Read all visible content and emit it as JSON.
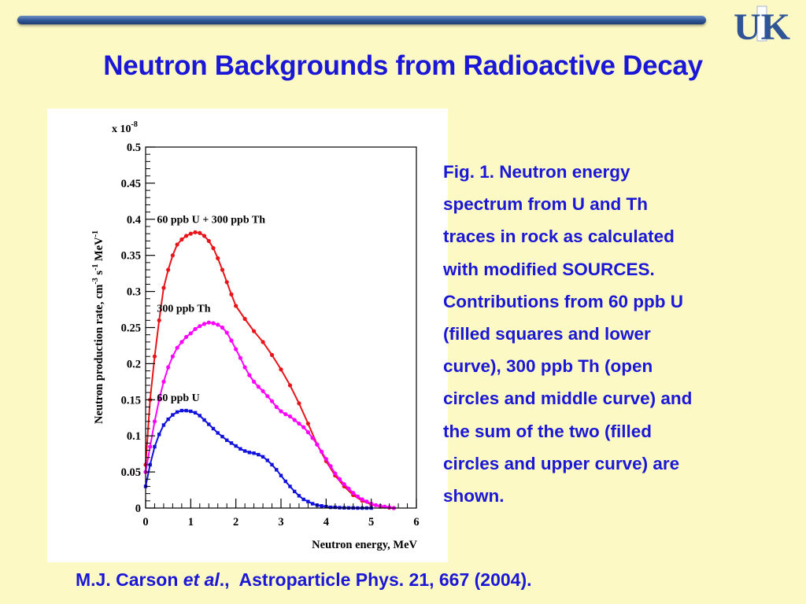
{
  "slide": {
    "title": "Neutron Backgrounds from Radioactive Decay",
    "logo_text": "UK",
    "caption_lines": [
      "Fig. 1. Neutron energy",
      "spectrum from U and Th",
      "traces in rock as calculated",
      "with modified SOURCES.",
      "Contributions from 60 ppb U",
      "(filled squares and lower",
      "curve), 300 ppb Th (open",
      "circles and middle curve) and",
      "the sum of the two (filled",
      "circles and upper curve) are",
      "shown."
    ],
    "citation": {
      "authors": "M.J. Carson ",
      "etal": "et al",
      "after_etal": ".,",
      "journal": "  Astroparticle Phys. 21, 667 (2004)."
    },
    "colors": {
      "title": "#1a17d6",
      "background": "#fdf9c4",
      "bar": "#2f5597",
      "logo": "#2f5597"
    }
  },
  "chart_data": {
    "type": "line",
    "xlabel": "Neutron energy, MeV",
    "ylabel": "Neutron production rate, cm",
    "ylabel_sup1": "-3",
    "ylabel_mid": " s",
    "ylabel_sup2": "-1",
    "ylabel_end": " MeV",
    "ylabel_sup3": "-1",
    "y_multiplier_base": "x 10",
    "y_multiplier_exp": "-8",
    "xlim": [
      0,
      6
    ],
    "ylim": [
      0,
      0.5
    ],
    "x_ticks": [
      "0",
      "1",
      "2",
      "3",
      "4",
      "5",
      "6"
    ],
    "y_ticks": [
      "0",
      "0.05",
      "0.1",
      "0.15",
      "0.2",
      "0.25",
      "0.3",
      "0.35",
      "0.4",
      "0.45",
      "0.5"
    ],
    "grid": false,
    "series": [
      {
        "name": "60 ppb U + 300 ppb Th",
        "color": "#e8141a",
        "marker": "circle",
        "x": [
          0.0,
          0.1,
          0.2,
          0.3,
          0.4,
          0.5,
          0.6,
          0.7,
          0.8,
          0.9,
          1.0,
          1.1,
          1.2,
          1.3,
          1.4,
          1.5,
          1.6,
          1.7,
          1.8,
          1.9,
          2.0,
          2.2,
          2.4,
          2.6,
          2.8,
          3.0,
          3.2,
          3.4,
          3.6,
          3.8,
          4.0,
          4.2,
          4.4,
          4.6,
          4.8,
          5.0,
          5.2,
          5.4,
          5.5
        ],
        "y": [
          0.06,
          0.15,
          0.21,
          0.26,
          0.305,
          0.33,
          0.35,
          0.365,
          0.372,
          0.377,
          0.38,
          0.382,
          0.381,
          0.377,
          0.37,
          0.36,
          0.346,
          0.33,
          0.313,
          0.296,
          0.28,
          0.262,
          0.245,
          0.23,
          0.212,
          0.192,
          0.17,
          0.145,
          0.117,
          0.088,
          0.065,
          0.045,
          0.03,
          0.018,
          0.01,
          0.005,
          0.002,
          0.0005,
          0.0
        ]
      },
      {
        "name": "300 ppb Th",
        "color": "#ff00ff",
        "marker": "circle",
        "x": [
          0.0,
          0.1,
          0.2,
          0.3,
          0.4,
          0.5,
          0.6,
          0.7,
          0.8,
          0.9,
          1.0,
          1.1,
          1.2,
          1.3,
          1.4,
          1.5,
          1.6,
          1.7,
          1.8,
          1.9,
          2.0,
          2.1,
          2.2,
          2.3,
          2.4,
          2.5,
          2.6,
          2.7,
          2.8,
          2.9,
          3.0,
          3.1,
          3.2,
          3.3,
          3.4,
          3.5,
          3.6,
          3.7,
          3.8,
          3.9,
          4.0,
          4.1,
          4.2,
          4.3,
          4.4,
          4.5,
          4.6,
          4.7,
          4.8,
          4.9,
          5.0,
          5.1,
          5.2,
          5.3,
          5.4,
          5.5
        ],
        "y": [
          0.05,
          0.085,
          0.12,
          0.15,
          0.175,
          0.195,
          0.21,
          0.222,
          0.23,
          0.237,
          0.242,
          0.248,
          0.252,
          0.255,
          0.257,
          0.256,
          0.254,
          0.25,
          0.243,
          0.232,
          0.22,
          0.208,
          0.195,
          0.184,
          0.175,
          0.168,
          0.162,
          0.155,
          0.148,
          0.14,
          0.134,
          0.13,
          0.127,
          0.122,
          0.117,
          0.112,
          0.105,
          0.097,
          0.088,
          0.078,
          0.068,
          0.058,
          0.048,
          0.04,
          0.033,
          0.027,
          0.021,
          0.016,
          0.012,
          0.009,
          0.006,
          0.004,
          0.003,
          0.002,
          0.001,
          0.0
        ]
      },
      {
        "name": "60 ppb U",
        "color": "#1111dd",
        "marker": "square",
        "x": [
          0.0,
          0.1,
          0.2,
          0.3,
          0.4,
          0.5,
          0.6,
          0.7,
          0.8,
          0.9,
          1.0,
          1.1,
          1.2,
          1.3,
          1.4,
          1.5,
          1.6,
          1.7,
          1.8,
          1.9,
          2.0,
          2.1,
          2.2,
          2.3,
          2.4,
          2.5,
          2.6,
          2.7,
          2.8,
          2.9,
          3.0,
          3.1,
          3.2,
          3.3,
          3.4,
          3.5,
          3.6,
          3.7,
          3.8,
          3.9,
          4.0,
          4.1,
          4.2,
          4.3,
          4.4,
          4.5,
          4.6,
          4.7,
          4.8,
          4.9,
          5.0
        ],
        "y": [
          0.03,
          0.06,
          0.085,
          0.102,
          0.115,
          0.123,
          0.129,
          0.133,
          0.135,
          0.135,
          0.134,
          0.132,
          0.128,
          0.122,
          0.116,
          0.11,
          0.104,
          0.099,
          0.094,
          0.09,
          0.086,
          0.082,
          0.079,
          0.077,
          0.076,
          0.074,
          0.071,
          0.066,
          0.06,
          0.053,
          0.045,
          0.037,
          0.03,
          0.023,
          0.017,
          0.012,
          0.009,
          0.006,
          0.004,
          0.003,
          0.002,
          0.001,
          0.001,
          0.0005,
          0.0003,
          0.0002,
          0.0001,
          0.0,
          0.0,
          0.0,
          0.0
        ]
      }
    ],
    "annotations": [
      {
        "text": "60 ppb U + 300 ppb Th",
        "x": 0.25,
        "y": 0.395
      },
      {
        "text": "300 ppb Th",
        "x": 0.25,
        "y": 0.272
      },
      {
        "text": "60 ppb U",
        "x": 0.25,
        "y": 0.148
      }
    ]
  }
}
